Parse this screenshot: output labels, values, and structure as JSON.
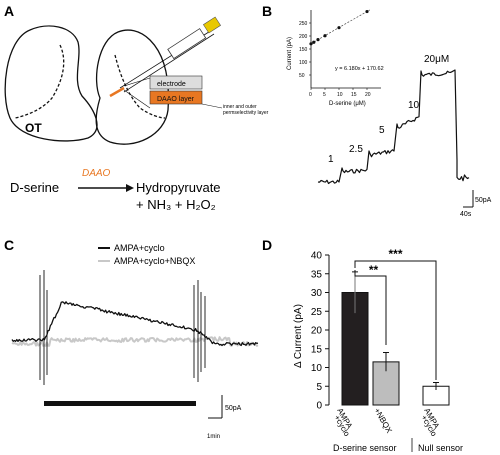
{
  "panels": {
    "A": {
      "letter": "A",
      "region_label": "OT",
      "electrode_label": "electrode",
      "daao_layer_label": "DAAO layer",
      "note_line1": "inner and outer",
      "note_line2": "permselectivity layer",
      "reaction": {
        "enzyme": "DAAO",
        "substrate": "D-serine",
        "product1": "Hydropyruvate",
        "product2": "+ NH₃ + H₂O₂"
      }
    },
    "B": {
      "letter": "B",
      "inset": {
        "ylabel": "Current (pA)",
        "xlabel": "D-serine (μM)",
        "xticks": [
          "0",
          "5",
          "10",
          "15",
          "20"
        ],
        "yticks": [
          "50",
          "100",
          "150",
          "200",
          "250"
        ],
        "equation": "y = 6.180x + 170.62"
      },
      "trace_labels": [
        "1",
        "2.5",
        "5",
        "10",
        "20μM"
      ],
      "scale_y": "50pA",
      "scale_x": "40s"
    },
    "C": {
      "letter": "C",
      "legend": [
        "AMPA+cyclo",
        "AMPA+cyclo+NBQX"
      ],
      "scale_y": "50pA",
      "scale_x": "1min"
    },
    "D": {
      "letter": "D",
      "ylabel": "Δ Current (pA)",
      "yticks": [
        "0",
        "5",
        "10",
        "15",
        "20",
        "25",
        "30",
        "35",
        "40"
      ],
      "bar_labels": [
        [
          "AMPA",
          "+cyclo"
        ],
        [
          "+NBQX"
        ],
        [
          "AMPA",
          "+cyclo"
        ]
      ],
      "sig1": "**",
      "sig2": "***",
      "group1": "D-serine sensor",
      "group2": "Null sensor"
    }
  },
  "colors": {
    "electrode_gray": "#dddddd",
    "daao_orange": "#e87722",
    "enzyme_orange": "#e87722",
    "trace_black": "#111111",
    "trace_gray": "#c8c8c8",
    "bar_black": "#231f20",
    "bar_gray": "#bdbdbd",
    "bar_white": "#ffffff"
  },
  "chart_data": [
    {
      "type": "scatter",
      "panel": "B-inset",
      "xlabel": "D-serine (μM)",
      "ylabel": "Current (pA)",
      "x": [
        0,
        1,
        2.5,
        5,
        10,
        20
      ],
      "y": [
        170,
        176,
        186,
        201,
        232,
        294
      ],
      "fit": {
        "slope": 6.18,
        "intercept": 170.62
      },
      "xlim": [
        0,
        25
      ],
      "ylim": [
        0,
        300
      ]
    },
    {
      "type": "bar",
      "panel": "D",
      "ylabel": "Δ Current (pA)",
      "categories": [
        "AMPA +cyclo",
        "+NBQX",
        "AMPA +cyclo"
      ],
      "groups": [
        "D-serine sensor",
        "D-serine sensor",
        "Null sensor"
      ],
      "values": [
        30,
        11.5,
        5
      ],
      "errors": [
        5.5,
        2.5,
        1
      ],
      "ylim": [
        0,
        40
      ],
      "significance": [
        {
          "between": [
            0,
            1
          ],
          "label": "**"
        },
        {
          "between": [
            0,
            2
          ],
          "label": "***"
        }
      ]
    }
  ]
}
